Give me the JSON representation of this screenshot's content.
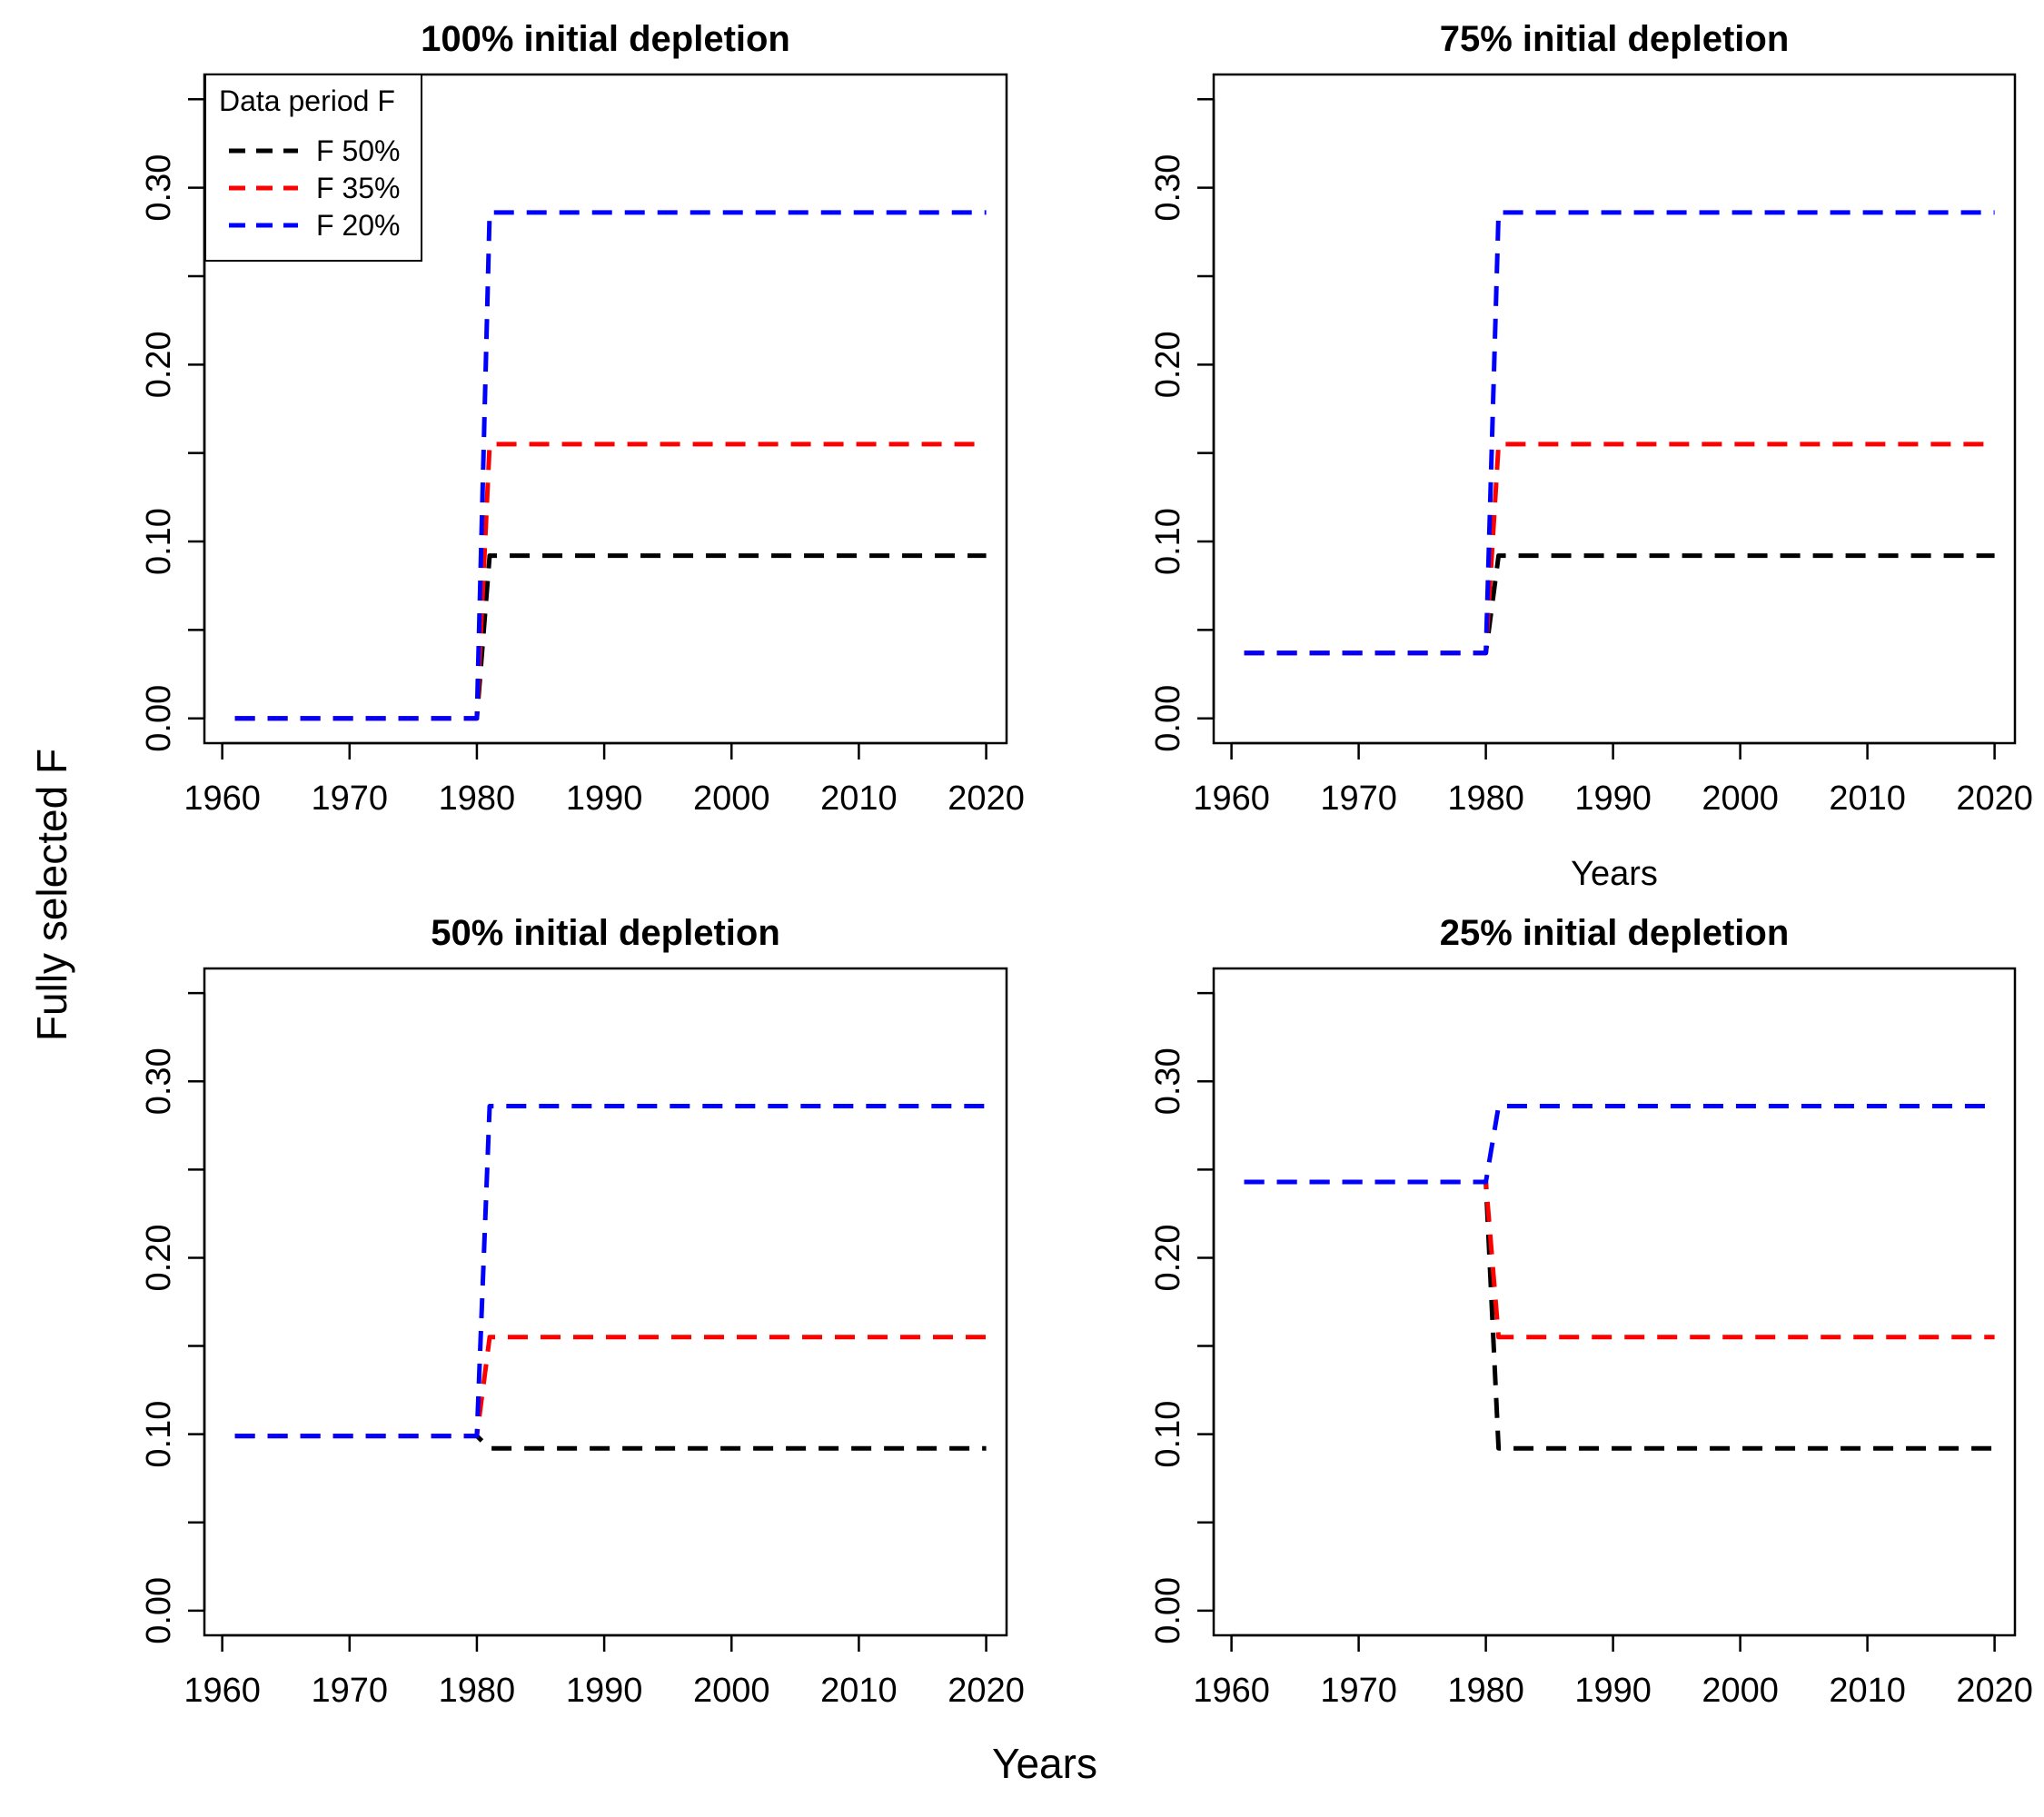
{
  "figure": {
    "x_title": "Years",
    "y_title": "Fully selected F"
  },
  "legend": {
    "title": "Data period F",
    "entries": [
      {
        "label": "F 50%",
        "color": "#000000"
      },
      {
        "label": "F 35%",
        "color": "#ff0000"
      },
      {
        "label": "F 20%",
        "color": "#0000ff"
      }
    ]
  },
  "chart_data": [
    {
      "type": "line",
      "title": "100% initial depletion",
      "xlabel": "",
      "ylabel": "",
      "xlim": [
        1960,
        2020
      ],
      "ylim": [
        0,
        0.35
      ],
      "x_ticks": [
        1960,
        1970,
        1980,
        1990,
        2000,
        2010,
        2020
      ],
      "y_ticks": [
        0.0,
        0.1,
        0.2,
        0.3
      ],
      "y_tick_labels": [
        "0.00",
        "0.10",
        "0.20",
        "0.30"
      ],
      "series": [
        {
          "name": "F 50%",
          "color": "#000000",
          "x": [
            1961,
            1980,
            1981,
            2020
          ],
          "y": [
            0.0,
            0.0,
            0.092,
            0.092
          ]
        },
        {
          "name": "F 35%",
          "color": "#ff0000",
          "x": [
            1961,
            1980,
            1981,
            2020
          ],
          "y": [
            0.0,
            0.0,
            0.155,
            0.155
          ]
        },
        {
          "name": "F 20%",
          "color": "#0000ff",
          "x": [
            1961,
            1980,
            1981,
            2020
          ],
          "y": [
            0.0,
            0.0,
            0.286,
            0.286
          ]
        }
      ]
    },
    {
      "type": "line",
      "title": "75% initial depletion",
      "xlabel": "Years",
      "ylabel": "",
      "xlim": [
        1960,
        2020
      ],
      "ylim": [
        0,
        0.35
      ],
      "x_ticks": [
        1960,
        1970,
        1980,
        1990,
        2000,
        2010,
        2020
      ],
      "y_ticks": [
        0.0,
        0.1,
        0.2,
        0.3
      ],
      "y_tick_labels": [
        "0.00",
        "0.10",
        "0.20",
        "0.30"
      ],
      "series": [
        {
          "name": "F 50%",
          "color": "#000000",
          "x": [
            1961,
            1980,
            1981,
            2020
          ],
          "y": [
            0.037,
            0.037,
            0.092,
            0.092
          ]
        },
        {
          "name": "F 35%",
          "color": "#ff0000",
          "x": [
            1961,
            1980,
            1981,
            2020
          ],
          "y": [
            0.037,
            0.037,
            0.155,
            0.155
          ]
        },
        {
          "name": "F 20%",
          "color": "#0000ff",
          "x": [
            1961,
            1980,
            1981,
            2020
          ],
          "y": [
            0.037,
            0.037,
            0.286,
            0.286
          ]
        }
      ]
    },
    {
      "type": "line",
      "title": "50% initial depletion",
      "xlabel": "",
      "ylabel": "",
      "xlim": [
        1960,
        2020
      ],
      "ylim": [
        0,
        0.35
      ],
      "x_ticks": [
        1960,
        1970,
        1980,
        1990,
        2000,
        2010,
        2020
      ],
      "y_ticks": [
        0.0,
        0.1,
        0.2,
        0.3
      ],
      "y_tick_labels": [
        "0.00",
        "0.10",
        "0.20",
        "0.30"
      ],
      "series": [
        {
          "name": "F 50%",
          "color": "#000000",
          "x": [
            1961,
            1980,
            1981,
            2020
          ],
          "y": [
            0.099,
            0.099,
            0.092,
            0.092
          ]
        },
        {
          "name": "F 35%",
          "color": "#ff0000",
          "x": [
            1961,
            1980,
            1981,
            2020
          ],
          "y": [
            0.099,
            0.099,
            0.155,
            0.155
          ]
        },
        {
          "name": "F 20%",
          "color": "#0000ff",
          "x": [
            1961,
            1980,
            1981,
            2020
          ],
          "y": [
            0.099,
            0.099,
            0.286,
            0.286
          ]
        }
      ]
    },
    {
      "type": "line",
      "title": "25% initial depletion",
      "xlabel": "",
      "ylabel": "",
      "xlim": [
        1960,
        2020
      ],
      "ylim": [
        0,
        0.35
      ],
      "x_ticks": [
        1960,
        1970,
        1980,
        1990,
        2000,
        2010,
        2020
      ],
      "y_ticks": [
        0.0,
        0.1,
        0.2,
        0.3
      ],
      "y_tick_labels": [
        "0.00",
        "0.10",
        "0.20",
        "0.30"
      ],
      "series": [
        {
          "name": "F 50%",
          "color": "#000000",
          "x": [
            1961,
            1980,
            1981,
            2020
          ],
          "y": [
            0.243,
            0.243,
            0.092,
            0.092
          ]
        },
        {
          "name": "F 35%",
          "color": "#ff0000",
          "x": [
            1961,
            1980,
            1981,
            2020
          ],
          "y": [
            0.243,
            0.243,
            0.155,
            0.155
          ]
        },
        {
          "name": "F 20%",
          "color": "#0000ff",
          "x": [
            1961,
            1980,
            1981,
            2020
          ],
          "y": [
            0.243,
            0.243,
            0.286,
            0.286
          ]
        }
      ]
    }
  ]
}
